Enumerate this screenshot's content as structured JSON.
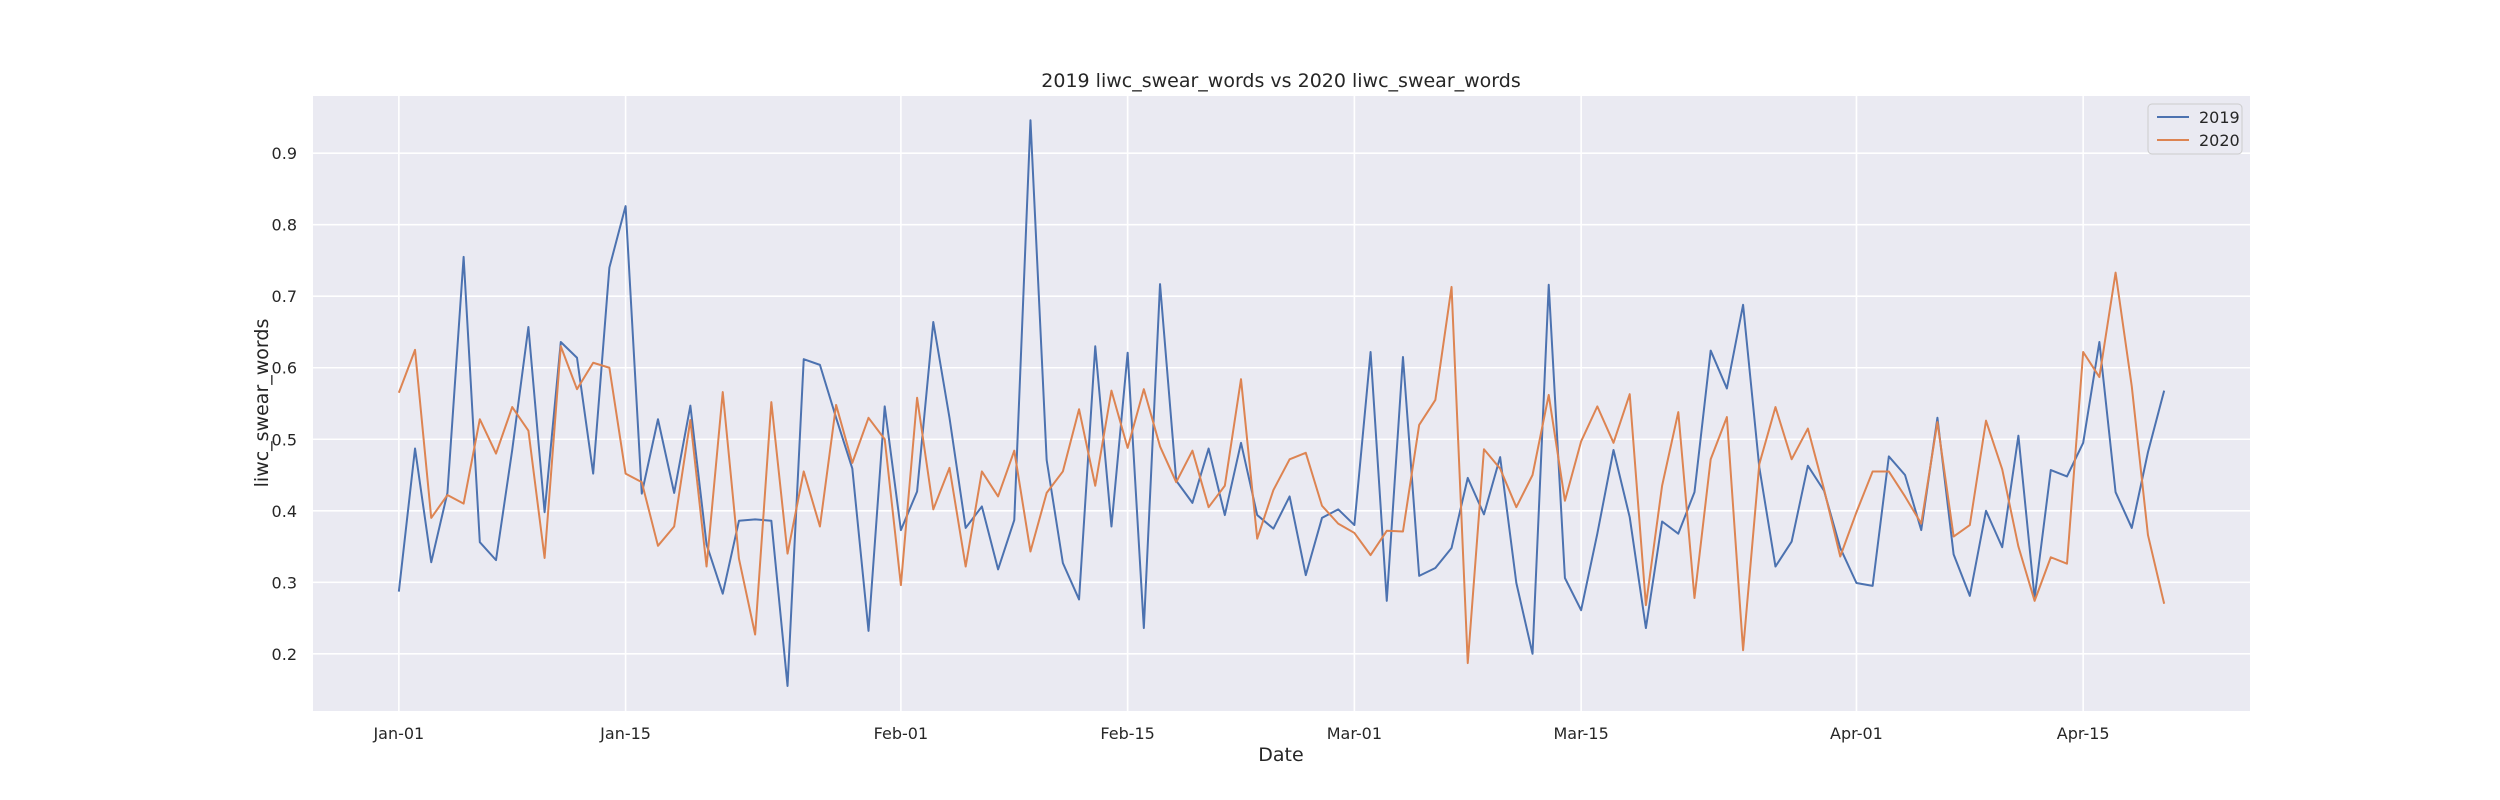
{
  "chart_data": {
    "type": "line",
    "title": "2019 liwc_swear_words vs 2020 liwc_swear_words",
    "xlabel": "Date",
    "ylabel": "liwc_swear_words",
    "x_start": "Jan-01",
    "x_tick_labels": [
      "Jan-01",
      "Jan-15",
      "Feb-01",
      "Feb-15",
      "Mar-01",
      "Mar-15",
      "Apr-01",
      "Apr-15"
    ],
    "x_tick_days": [
      0,
      14,
      31,
      45,
      59,
      73,
      90,
      104
    ],
    "xlim_days": [
      -5.3,
      114.3
    ],
    "y_ticks": [
      0.2,
      0.3,
      0.4,
      0.5,
      0.6,
      0.7,
      0.8,
      0.9
    ],
    "ylim": [
      0.12,
      0.98
    ],
    "grid": true,
    "background": "#eaeaf2",
    "legend_position": "top-right",
    "series": [
      {
        "name": "2019",
        "color": "#4c72b0",
        "values": [
          0.287,
          0.487,
          0.328,
          0.425,
          0.755,
          0.356,
          0.331,
          0.485,
          0.657,
          0.398,
          0.636,
          0.614,
          0.452,
          0.74,
          0.826,
          0.424,
          0.528,
          0.425,
          0.547,
          0.353,
          0.284,
          0.386,
          0.388,
          0.386,
          0.155,
          0.612,
          0.604,
          0.53,
          0.459,
          0.232,
          0.546,
          0.373,
          0.427,
          0.664,
          0.53,
          0.376,
          0.406,
          0.318,
          0.387,
          0.946,
          0.471,
          0.327,
          0.276,
          0.63,
          0.378,
          0.621,
          0.236,
          0.717,
          0.442,
          0.411,
          0.487,
          0.394,
          0.495,
          0.394,
          0.375,
          0.42,
          0.31,
          0.39,
          0.402,
          0.38,
          0.622,
          0.274,
          0.615,
          0.309,
          0.32,
          0.348,
          0.446,
          0.395,
          0.475,
          0.299,
          0.2,
          0.716,
          0.306,
          0.261,
          0.368,
          0.485,
          0.391,
          0.236,
          0.385,
          0.368,
          0.426,
          0.624,
          0.571,
          0.688,
          0.461,
          0.322,
          0.357,
          0.463,
          0.428,
          0.348,
          0.299,
          0.295,
          0.476,
          0.45,
          0.373,
          0.53,
          0.339,
          0.281,
          0.4,
          0.349,
          0.505,
          0.278,
          0.457,
          0.448,
          0.495,
          0.636,
          0.426,
          0.376,
          0.482,
          0.568
        ]
      },
      {
        "name": "2020",
        "color": "#dd8452",
        "values": [
          0.565,
          0.625,
          0.39,
          0.422,
          0.41,
          0.528,
          0.48,
          0.545,
          0.512,
          0.334,
          0.63,
          0.57,
          0.607,
          0.6,
          0.452,
          0.44,
          0.351,
          0.378,
          0.527,
          0.322,
          0.566,
          0.333,
          0.227,
          0.552,
          0.34,
          0.455,
          0.378,
          0.548,
          0.467,
          0.53,
          0.5,
          0.296,
          0.558,
          0.402,
          0.46,
          0.322,
          0.455,
          0.42,
          0.484,
          0.343,
          0.425,
          0.455,
          0.542,
          0.435,
          0.568,
          0.488,
          0.57,
          0.49,
          0.44,
          0.484,
          0.405,
          0.435,
          0.584,
          0.361,
          0.429,
          0.472,
          0.481,
          0.407,
          0.382,
          0.369,
          0.338,
          0.372,
          0.371,
          0.52,
          0.555,
          0.713,
          0.187,
          0.486,
          0.459,
          0.405,
          0.45,
          0.562,
          0.414,
          0.497,
          0.546,
          0.495,
          0.563,
          0.268,
          0.435,
          0.538,
          0.278,
          0.472,
          0.531,
          0.205,
          0.465,
          0.545,
          0.472,
          0.515,
          0.43,
          0.336,
          0.398,
          0.455,
          0.455,
          0.42,
          0.382,
          0.524,
          0.364,
          0.38,
          0.526,
          0.458,
          0.35,
          0.274,
          0.335,
          0.326,
          0.622,
          0.587,
          0.733,
          0.574,
          0.366,
          0.27
        ]
      }
    ]
  }
}
